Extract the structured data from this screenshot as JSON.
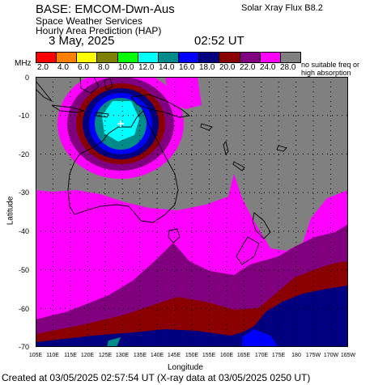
{
  "header": {
    "base": "BASE: EMCOM-Dwn-Aus",
    "service": "Space Weather Services",
    "product": "Hourly Area Prediction (HAP)",
    "date": "3 May, 2025",
    "time": "02:52 UT",
    "flux": "Solar Xray Flux B8.2"
  },
  "legend": {
    "unit": "MHz",
    "labels": [
      "2.0",
      "4.0",
      "6.0",
      "8.0",
      "10.0",
      "12.0",
      "14.0",
      "16.0",
      "18.0",
      "20.0",
      "22.0",
      "24.0",
      "28.0"
    ],
    "colors": [
      "#ff0000",
      "#ff7f00",
      "#ffff00",
      "#808000",
      "#00ff00",
      "#00ffff",
      "#008b8b",
      "#0000ff",
      "#000080",
      "#8b0000",
      "#800080",
      "#ff00ff",
      "#808080"
    ],
    "nofreq_line1": "no suitable freq or",
    "nofreq_line2": "high absorption"
  },
  "axes": {
    "ylabel": "Latitude",
    "xlabel": "Longitude",
    "yticks": [
      "0",
      "-10",
      "-20",
      "-30",
      "-40",
      "-50",
      "-60",
      "-70"
    ],
    "xticks": [
      "105E",
      "110E",
      "115E",
      "120E",
      "125E",
      "130E",
      "135E",
      "140E",
      "145E",
      "150E",
      "155E",
      "160E",
      "165E",
      "170E",
      "175E",
      "180",
      "175W",
      "170W",
      "165W"
    ]
  },
  "footer": "Created at 03/05/2025 02:57:54 UT (X-ray data at 03/05/2025 0250 UT)"
}
